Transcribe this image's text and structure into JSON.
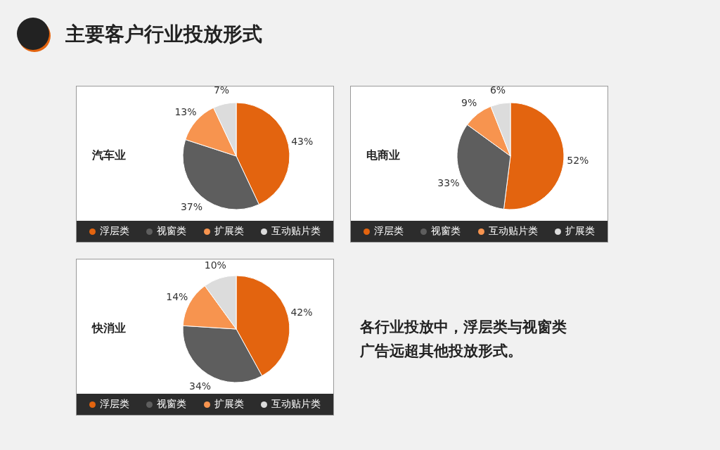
{
  "chart_data": [
    {
      "type": "other",
      "title": "主要客户行业投放形式"
    },
    {
      "type": "pie",
      "title": "汽车业",
      "categories": [
        "浮层类",
        "视窗类",
        "扩展类",
        "互动贴片类"
      ],
      "values": [
        43,
        37,
        13,
        7
      ],
      "value_labels": [
        "43%",
        "37%",
        "13%",
        "7%"
      ],
      "colors": [
        "#e3640f",
        "#5e5e5e",
        "#f7944f",
        "#dcdcdc"
      ],
      "legend": "bottom"
    },
    {
      "type": "pie",
      "title": "电商业",
      "categories": [
        "浮层类",
        "视窗类",
        "互动贴片类",
        "扩展类"
      ],
      "values": [
        52,
        33,
        9,
        6
      ],
      "value_labels": [
        "52%",
        "33%",
        "9%",
        "6%"
      ],
      "colors": [
        "#e3640f",
        "#5e5e5e",
        "#f7944f",
        "#dcdcdc"
      ],
      "legend": "bottom"
    },
    {
      "type": "pie",
      "title": "快消业",
      "categories": [
        "浮层类",
        "视窗类",
        "扩展类",
        "互动贴片类"
      ],
      "values": [
        42,
        34,
        14,
        10
      ],
      "value_labels": [
        "42%",
        "34%",
        "14%",
        "10%"
      ],
      "colors": [
        "#e3640f",
        "#5e5e5e",
        "#f7944f",
        "#dcdcdc"
      ],
      "legend": "bottom"
    },
    {
      "type": "other",
      "annotations": [
        "各行业投放中，浮层类与视窗类广告远超其他投放形式。"
      ]
    }
  ]
}
